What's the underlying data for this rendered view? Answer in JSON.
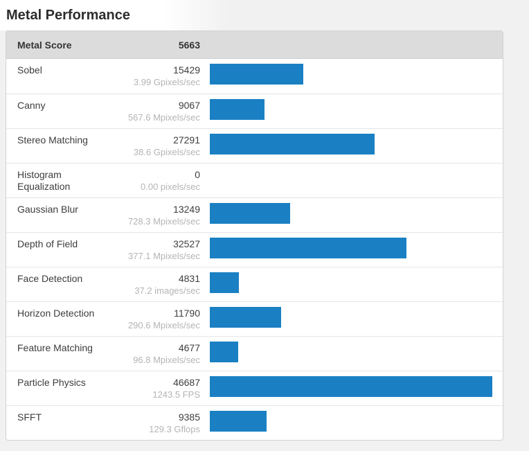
{
  "page": {
    "title": "Metal Performance"
  },
  "colors": {
    "page_background": "#f1f1f2",
    "bar": "#1a80c3",
    "header_background": "#dcdcdd"
  },
  "table": {
    "header": {
      "label": "Metal Score",
      "value": "5663"
    },
    "rows": [
      {
        "name": "Sobel",
        "score": "15429",
        "rate": "3.99 Gpixels/sec"
      },
      {
        "name": "Canny",
        "score": "9067",
        "rate": "567.6 Mpixels/sec"
      },
      {
        "name": "Stereo Matching",
        "score": "27291",
        "rate": "38.6 Gpixels/sec"
      },
      {
        "name": "Histogram Equalization",
        "score": "0",
        "rate": "0.00 pixels/sec"
      },
      {
        "name": "Gaussian Blur",
        "score": "13249",
        "rate": "728.3 Mpixels/sec"
      },
      {
        "name": "Depth of Field",
        "score": "32527",
        "rate": "377.1 Mpixels/sec"
      },
      {
        "name": "Face Detection",
        "score": "4831",
        "rate": "37.2 images/sec"
      },
      {
        "name": "Horizon Detection",
        "score": "11790",
        "rate": "290.6 Mpixels/sec"
      },
      {
        "name": "Feature Matching",
        "score": "4677",
        "rate": "96.8 Mpixels/sec"
      },
      {
        "name": "Particle Physics",
        "score": "46687",
        "rate": "1243.5 FPS"
      },
      {
        "name": "SFFT",
        "score": "9385",
        "rate": "129.3 Gflops"
      }
    ]
  },
  "chart_data": {
    "type": "bar",
    "orientation": "horizontal",
    "title": "Metal Performance",
    "summary": {
      "label": "Metal Score",
      "value": 5663
    },
    "categories": [
      "Sobel",
      "Canny",
      "Stereo Matching",
      "Histogram Equalization",
      "Gaussian Blur",
      "Depth of Field",
      "Face Detection",
      "Horizon Detection",
      "Feature Matching",
      "Particle Physics",
      "SFFT"
    ],
    "values": [
      15429,
      9067,
      27291,
      0,
      13249,
      32527,
      4831,
      11790,
      4677,
      46687,
      9385
    ],
    "value_sublabels": [
      "3.99 Gpixels/sec",
      "567.6 Mpixels/sec",
      "38.6 Gpixels/sec",
      "0.00 pixels/sec",
      "728.3 Mpixels/sec",
      "377.1 Mpixels/sec",
      "37.2 images/sec",
      "290.6 Mpixels/sec",
      "96.8 Mpixels/sec",
      "1243.5 FPS",
      "129.3 Gflops"
    ],
    "xlabel": "",
    "ylabel": "",
    "xlim": [
      0,
      46687
    ],
    "grid": false,
    "legend": "none",
    "bar_color": "#1a80c3"
  }
}
